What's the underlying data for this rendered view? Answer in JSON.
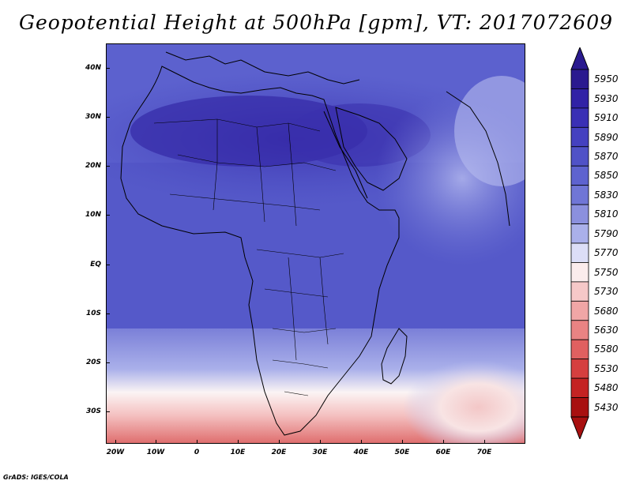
{
  "title": "Geopotential Height at 500hPa [gpm], VT: 2017072609",
  "footer": "GrADS: IGES/COLA",
  "map": {
    "lat_labels": [
      "40N",
      "30N",
      "20N",
      "10N",
      "EQ",
      "10S",
      "20S",
      "30S"
    ],
    "lon_labels": [
      "20W",
      "10W",
      "0",
      "10E",
      "20E",
      "30E",
      "40E",
      "50E",
      "60E",
      "70E"
    ]
  },
  "colorbar": {
    "levels": [
      "5950",
      "5930",
      "5910",
      "5890",
      "5870",
      "5850",
      "5830",
      "5810",
      "5790",
      "5770",
      "5750",
      "5730",
      "5680",
      "5630",
      "5580",
      "5530",
      "5480",
      "5430"
    ],
    "colors": [
      "#2a1a8f",
      "#3122a6",
      "#3a30b5",
      "#4541c0",
      "#5052c7",
      "#5e63cf",
      "#7076d6",
      "#8b90de",
      "#aab0ea",
      "#dcdef7",
      "#fbecec",
      "#f6c8c8",
      "#f0a6a6",
      "#e98383",
      "#e06060",
      "#d53f3f",
      "#c42323",
      "#a81010"
    ],
    "top_color": "#2a1a8f",
    "bottom_color": "#a81010"
  }
}
